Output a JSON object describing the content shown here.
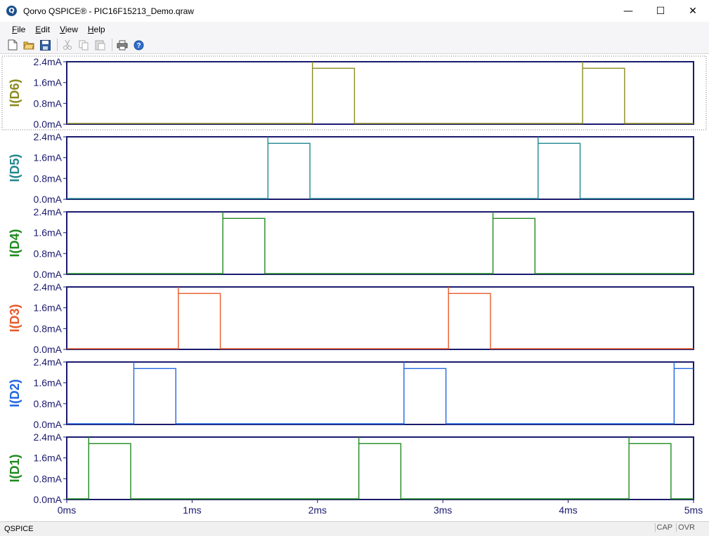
{
  "window": {
    "title": "Qorvo QSPICE® - PIC16F15213_Demo.qraw",
    "icon": "qspice-logo-icon",
    "controls": {
      "minimize": "—",
      "maximize": "☐",
      "close": "✕"
    }
  },
  "menu": [
    {
      "label": "File",
      "accel": "F",
      "rest": "ile"
    },
    {
      "label": "Edit",
      "accel": "E",
      "rest": "dit"
    },
    {
      "label": "View",
      "accel": "V",
      "rest": "iew"
    },
    {
      "label": "Help",
      "accel": "H",
      "rest": "elp"
    }
  ],
  "toolbar": [
    "new-file-icon",
    "open-folder-icon",
    "save-icon",
    "cut-icon",
    "copy-icon",
    "paste-icon",
    "print-icon",
    "help-icon"
  ],
  "status": {
    "text": "QSPICE",
    "cap": "CAP",
    "ovr": "OVR"
  },
  "chart_data": {
    "type": "line",
    "x_unit": "ms",
    "xlim": [
      0,
      5
    ],
    "x_ticks": [
      0,
      1,
      2,
      3,
      4,
      5
    ],
    "x_tick_labels": [
      "0ms",
      "1ms",
      "2ms",
      "3ms",
      "4ms",
      "5ms"
    ],
    "y_unit": "mA",
    "ylim": [
      0,
      2.4
    ],
    "y_ticks": [
      0,
      0.8,
      1.6,
      2.4
    ],
    "y_tick_labels": [
      "0.0mA",
      "0.8mA",
      "1.6mA",
      "2.4mA"
    ],
    "pulse_peak_mA": 2.4,
    "pulse_level_mA": 2.15,
    "period_ms": 2.155,
    "pulse_width_ms": 0.335,
    "panels": [
      {
        "name": "I(D6)",
        "color": "#8b8b20",
        "pulse_starts_ms": [
          1.96,
          4.115
        ]
      },
      {
        "name": "I(D5)",
        "color": "#22888f",
        "pulse_starts_ms": [
          1.605,
          3.76
        ]
      },
      {
        "name": "I(D4)",
        "color": "#1f8a1f",
        "pulse_starts_ms": [
          1.245,
          3.4
        ]
      },
      {
        "name": "I(D3)",
        "color": "#e85a2a",
        "pulse_starts_ms": [
          0.89,
          3.045
        ]
      },
      {
        "name": "I(D2)",
        "color": "#2266e0",
        "pulse_starts_ms": [
          0.535,
          2.69,
          4.845
        ]
      },
      {
        "name": "I(D1)",
        "color": "#1f8a1f",
        "pulse_starts_ms": [
          0.175,
          2.33,
          4.485
        ]
      }
    ]
  }
}
